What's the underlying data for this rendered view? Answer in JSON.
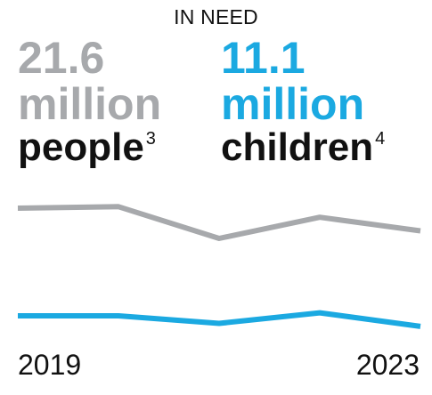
{
  "heading": "IN NEED",
  "colors": {
    "gray": "#a7a9ac",
    "blue": "#1ba9e1",
    "text": "#111111"
  },
  "stats": [
    {
      "value": "21.6",
      "unit": "million",
      "label": "people",
      "footnote": "3"
    },
    {
      "value": "11.1",
      "unit": "million",
      "label": "children",
      "footnote": "4"
    }
  ],
  "chart_data": {
    "type": "line",
    "x": [
      2019,
      2020,
      2021,
      2022,
      2023
    ],
    "series": [
      {
        "name": "",
        "values": [
          21.1,
          21.2,
          19.1,
          20.5,
          19.6
        ]
      },
      {
        "name": "",
        "values": [
          11.4,
          11.4,
          10.9,
          11.6,
          10.7
        ]
      }
    ],
    "xlabels": [
      "2019",
      "2023"
    ]
  }
}
